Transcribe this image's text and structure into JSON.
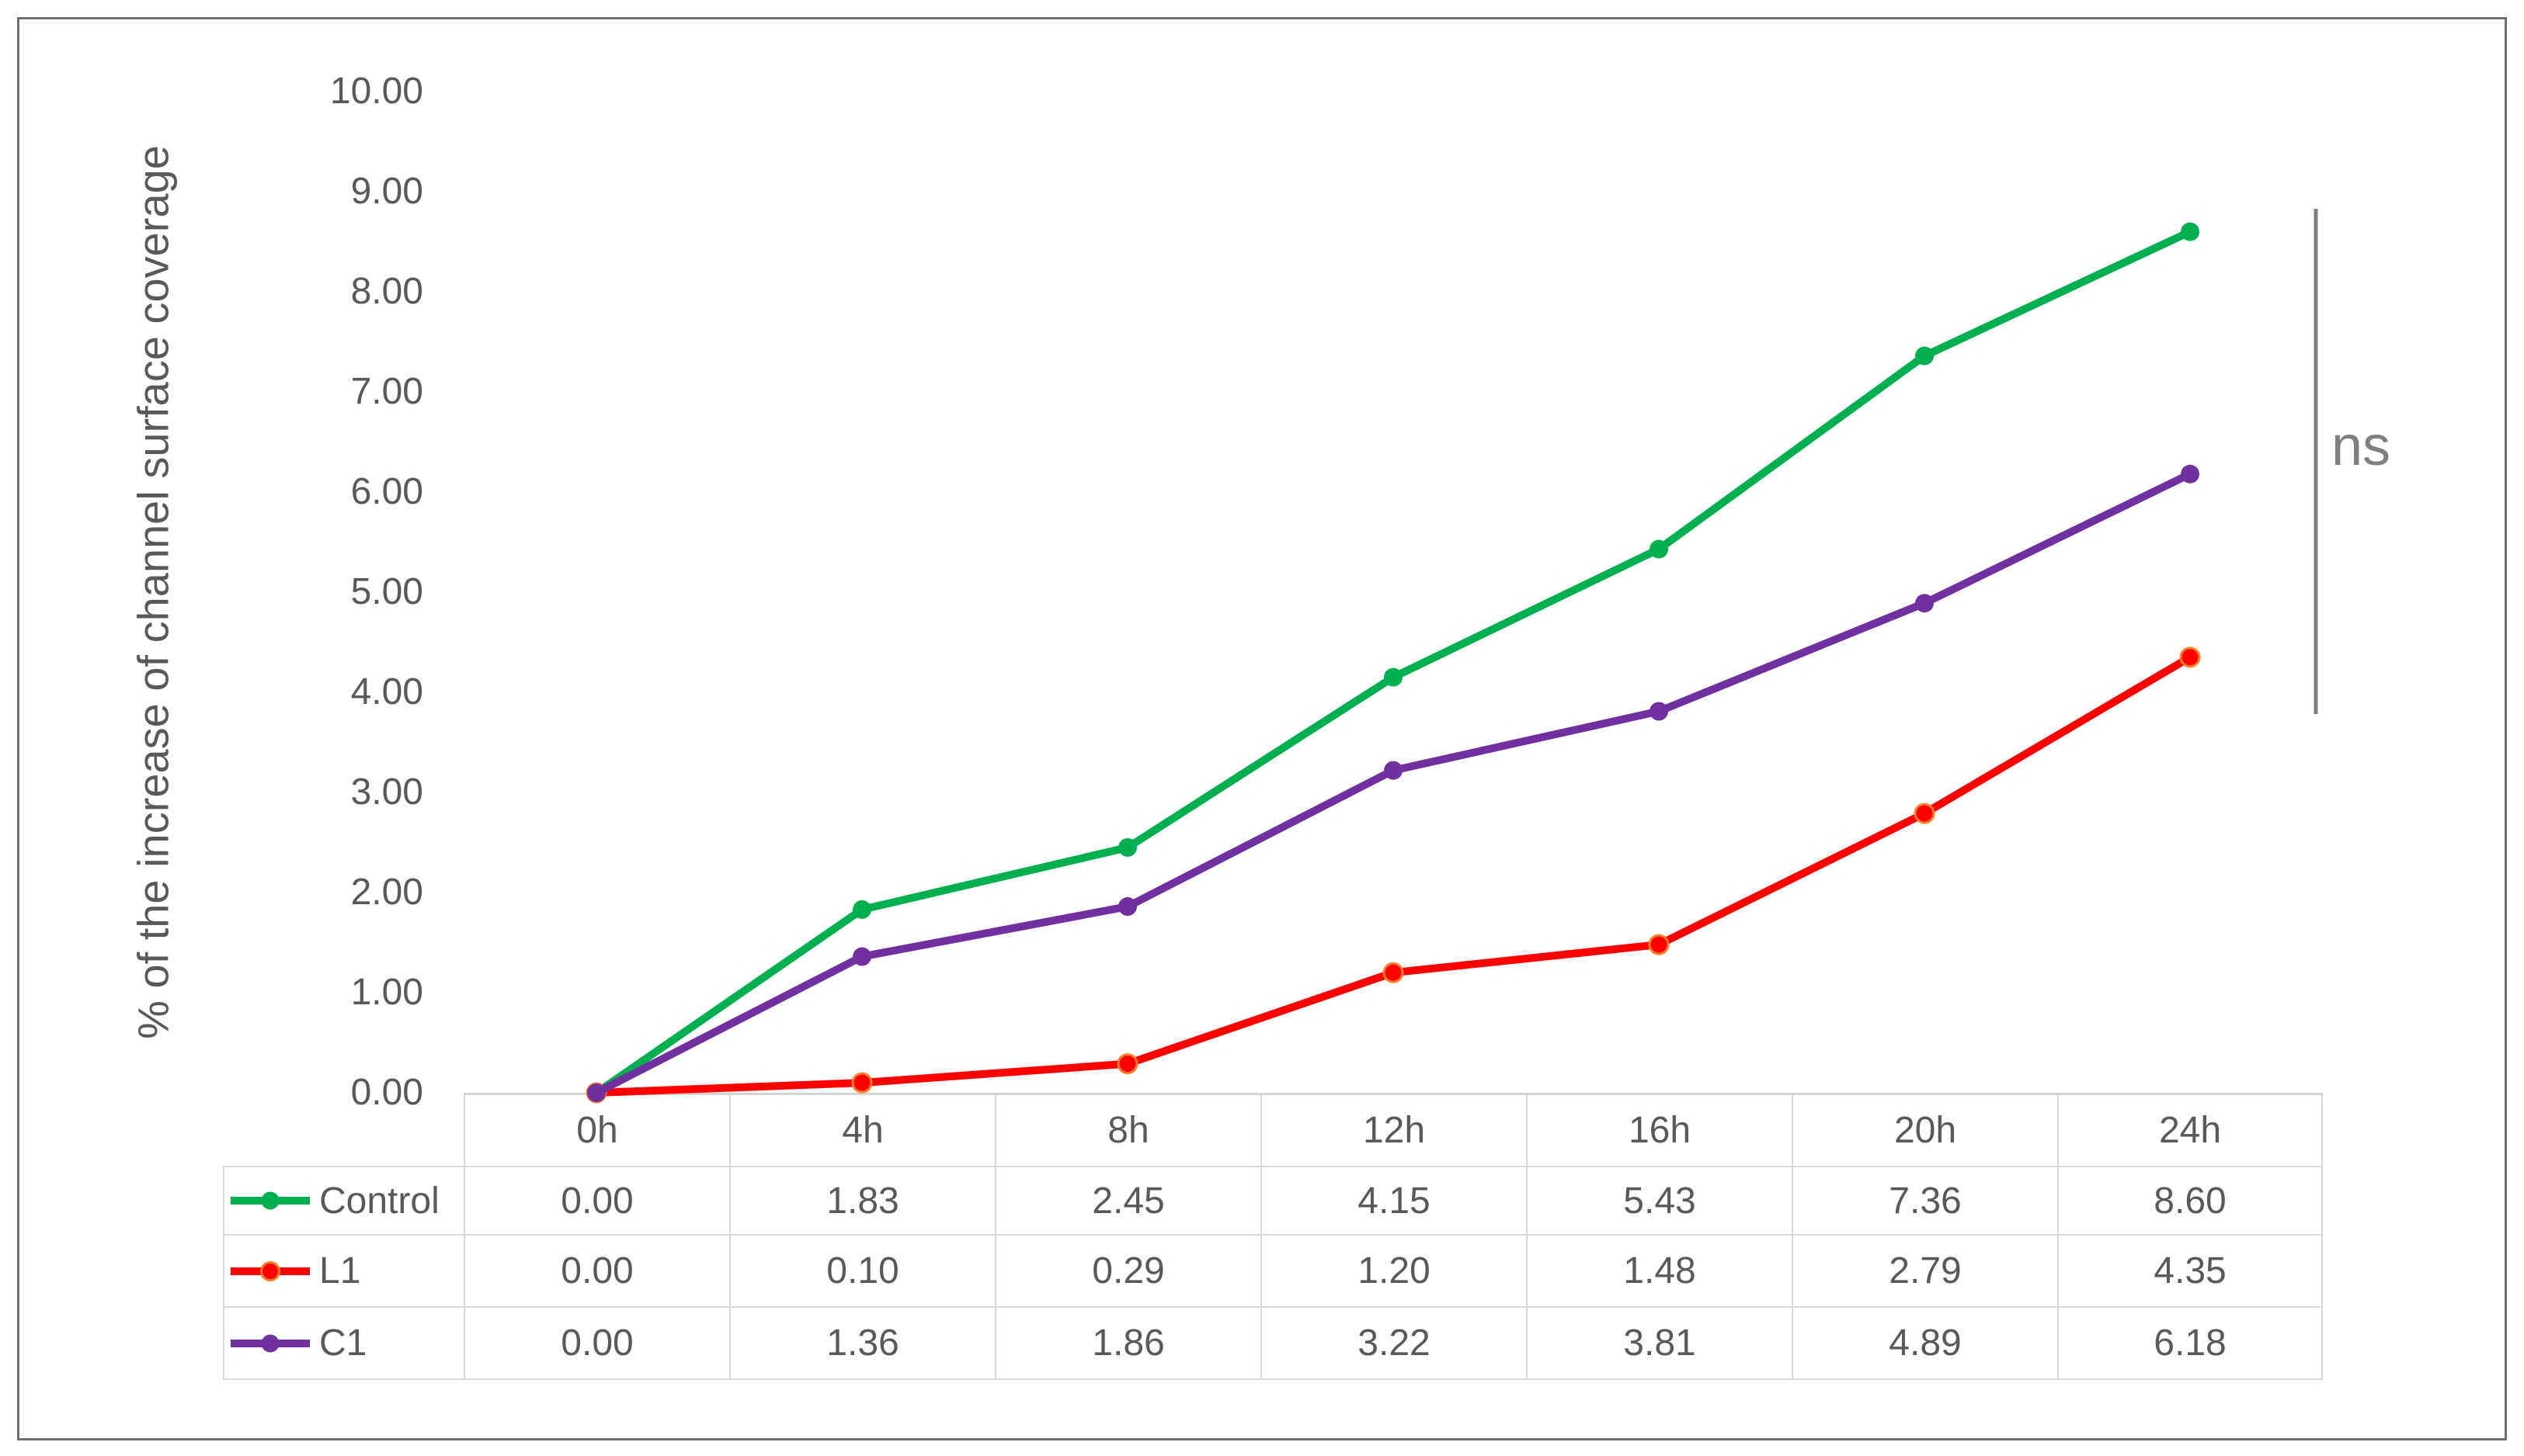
{
  "chart_data": {
    "type": "line",
    "title": "",
    "categories": [
      "0h",
      "4h",
      "8h",
      "12h",
      "16h",
      "20h",
      "24h"
    ],
    "series": [
      {
        "name": "Control",
        "color": "#00B050",
        "marker": "circle",
        "values": [
          0.0,
          1.83,
          2.45,
          4.15,
          5.43,
          7.36,
          8.6
        ]
      },
      {
        "name": "L1",
        "color": "#FF0000",
        "marker": "circle",
        "marker_outline": "#FF7F27",
        "values": [
          0.0,
          0.1,
          0.29,
          1.2,
          1.48,
          2.79,
          4.35
        ]
      },
      {
        "name": "C1",
        "color": "#7030A0",
        "marker": "circle",
        "values": [
          0.0,
          1.36,
          1.86,
          3.22,
          3.81,
          4.89,
          6.18
        ]
      }
    ],
    "xlabel": "",
    "ylabel": "% of the increase of channel surface coverage",
    "ylim": [
      0,
      10
    ],
    "ytick_step": 1,
    "grid": false,
    "legend_position": "data-table-row-headers",
    "annotation": {
      "label": "ns",
      "style": "vertical-bracket-right-of-last-points"
    }
  },
  "y_axis": {
    "title": "% of the increase of channel surface coverage",
    "tick_labels": [
      "10.00",
      "9.00",
      "8.00",
      "7.00",
      "6.00",
      "5.00",
      "4.00",
      "3.00",
      "2.00",
      "1.00",
      "0.00"
    ]
  },
  "data_table": {
    "columns": [
      "0h",
      "4h",
      "8h",
      "12h",
      "16h",
      "20h",
      "24h"
    ],
    "rows": [
      {
        "label": "Control",
        "values": [
          "0.00",
          "1.83",
          "2.45",
          "4.15",
          "5.43",
          "7.36",
          "8.60"
        ]
      },
      {
        "label": "L1",
        "values": [
          "0.00",
          "0.10",
          "0.29",
          "1.20",
          "1.48",
          "2.79",
          "4.35"
        ]
      },
      {
        "label": "C1",
        "values": [
          "0.00",
          "1.36",
          "1.86",
          "3.22",
          "3.81",
          "4.89",
          "6.18"
        ]
      }
    ]
  },
  "annotation": {
    "label": "ns"
  },
  "colors": {
    "series_control": "#00B050",
    "series_l1": "#FF0000",
    "series_l1_marker_outline": "#FF7F27",
    "series_c1": "#7030A0",
    "text": "#595959",
    "table_border": "#D9D9D9",
    "axis_line": "#D4D4D4",
    "annotation": "#7F7F7F",
    "figure_border": "#6F6F6F"
  }
}
